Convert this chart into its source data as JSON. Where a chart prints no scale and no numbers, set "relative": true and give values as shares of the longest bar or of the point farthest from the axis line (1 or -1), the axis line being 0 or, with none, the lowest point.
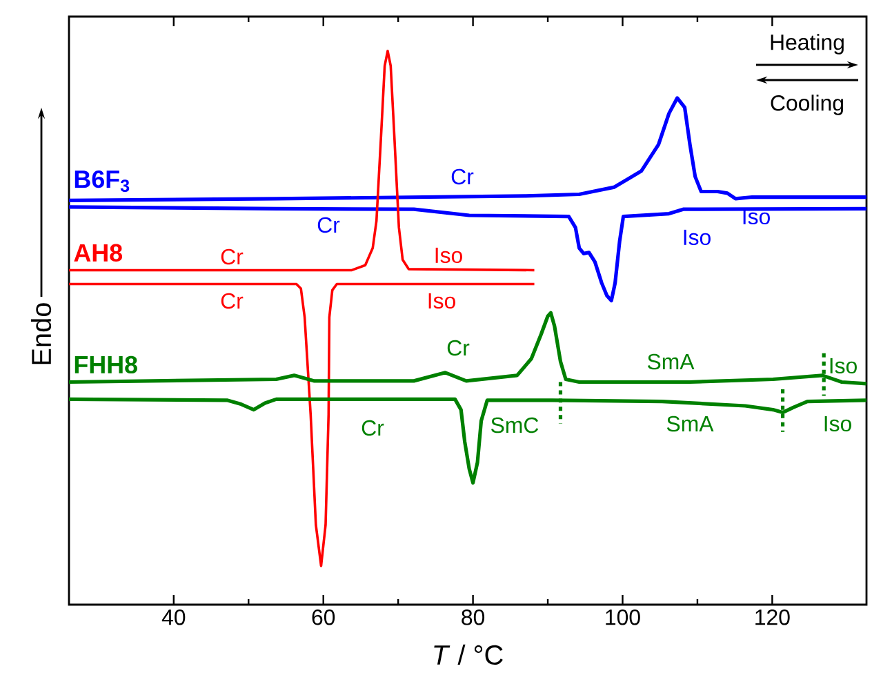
{
  "chart_data": {
    "type": "line",
    "relative": true,
    "xlabel": "*T* / °C",
    "ylabel": "Endo",
    "xlim": [
      26.0,
      132.6
    ],
    "xticks": [
      40,
      60,
      80,
      100,
      120
    ],
    "series": [
      {
        "name": "B6F$_{3}$",
        "color": "#0000ff",
        "x": [
          26.0,
          53.7,
          86.9,
          94.2,
          98.9,
          102.5,
          104.8,
          106.2,
          107.3,
          108.3,
          109.0,
          109.7,
          110.5,
          112.7,
          114.0,
          115.1,
          117.3,
          132.6
        ],
        "values": [
          0.73,
          0.733,
          0.738,
          0.741,
          0.754,
          0.783,
          0.831,
          0.887,
          0.915,
          0.898,
          0.831,
          0.773,
          0.746,
          0.746,
          0.743,
          0.733,
          0.736,
          0.736
        ]
      },
      {
        "color": "#0000ff",
        "x": [
          26.0,
          53.7,
          72.1,
          79.5,
          92.8,
          93.7,
          94.2,
          94.8,
          95.5,
          96.3,
          97.2,
          97.9,
          98.5,
          99.0,
          99.6,
          100.1,
          106.2,
          108.1,
          132.6
        ],
        "values": [
          0.718,
          0.715,
          0.714,
          0.703,
          0.701,
          0.681,
          0.644,
          0.634,
          0.636,
          0.619,
          0.581,
          0.558,
          0.549,
          0.581,
          0.656,
          0.701,
          0.706,
          0.714,
          0.715
        ]
      },
      {
        "name": "AH8",
        "color": "#ff0000",
        "x": [
          26.0,
          63.8,
          65.6,
          66.6,
          67.1,
          67.7,
          68.2,
          68.6,
          69.0,
          69.5,
          70.1,
          70.6,
          71.4,
          88.2
        ],
        "values": [
          0.604,
          0.604,
          0.613,
          0.644,
          0.693,
          0.843,
          0.973,
          1.0,
          0.973,
          0.843,
          0.681,
          0.623,
          0.606,
          0.604
        ]
      },
      {
        "color": "#ff0000",
        "x": [
          26.0,
          56.4,
          57.0,
          57.5,
          58.3,
          59.0,
          59.7,
          60.3,
          60.7,
          60.8,
          61.2,
          61.8,
          88.2
        ],
        "values": [
          0.579,
          0.579,
          0.571,
          0.519,
          0.344,
          0.144,
          0.07,
          0.144,
          0.344,
          0.519,
          0.568,
          0.579,
          0.579
        ]
      },
      {
        "name": "FHH8",
        "color": "#008000",
        "x": [
          26.0,
          53.7,
          56.1,
          58.8,
          72.1,
          76.3,
          79.1,
          85.9,
          87.8,
          89.1,
          90.0,
          90.4,
          90.9,
          91.7,
          92.4,
          94.2,
          109.0,
          120.1,
          126.7,
          129.3,
          132.6
        ],
        "values": [
          0.402,
          0.407,
          0.414,
          0.404,
          0.404,
          0.419,
          0.404,
          0.414,
          0.444,
          0.488,
          0.521,
          0.527,
          0.503,
          0.439,
          0.407,
          0.402,
          0.402,
          0.407,
          0.414,
          0.402,
          0.399
        ]
      },
      {
        "color": "#008000",
        "x": [
          26.0,
          47.2,
          49.0,
          50.7,
          52.2,
          53.7,
          77.6,
          78.4,
          78.9,
          79.5,
          80.0,
          80.6,
          81.1,
          81.9,
          90.6,
          105.3,
          116.4,
          120.1,
          121.4,
          122.8,
          124.7,
          132.6
        ],
        "values": [
          0.371,
          0.369,
          0.362,
          0.352,
          0.364,
          0.371,
          0.371,
          0.352,
          0.294,
          0.245,
          0.22,
          0.257,
          0.332,
          0.369,
          0.369,
          0.367,
          0.359,
          0.352,
          0.347,
          0.356,
          0.367,
          0.369
        ]
      },
      {
        "color": "#008000",
        "line_style": "dashed",
        "x": [
          91.7,
          91.7
        ],
        "values": [
          0.402,
          0.327
        ]
      },
      {
        "color": "#008000",
        "line_style": "dashed",
        "x": [
          121.4,
          121.4
        ],
        "values": [
          0.389,
          0.312
        ]
      },
      {
        "color": "#008000",
        "line_style": "dashed",
        "x": [
          126.9,
          126.9
        ],
        "values": [
          0.454,
          0.377
        ]
      }
    ],
    "annotations": [
      "Heating",
      "Cooling",
      "Cr",
      "Iso",
      "Cr",
      "Iso",
      "Cr",
      "Iso",
      "Cr",
      "Iso",
      "Cr",
      "SmA",
      "Iso",
      "Cr",
      "SmC",
      "SmA",
      "Iso"
    ]
  }
}
